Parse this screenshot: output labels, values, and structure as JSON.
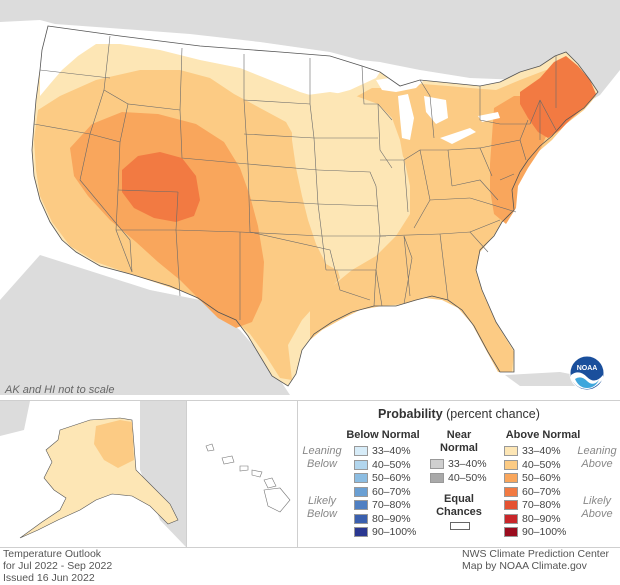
{
  "scale_note": "AK and HI not to scale",
  "footer_left": {
    "line1": "Temperature Outlook",
    "line2": "for Jul 2022 - Sep 2022",
    "line3": "Issued 16 Jun 2022"
  },
  "footer_right": {
    "line1": "NWS Climate Prediction Center",
    "line2": "Map by NOAA Climate.gov"
  },
  "logo": {
    "text": "NOAA"
  },
  "legend": {
    "title_bold": "Probability",
    "title_rest": "(percent chance)",
    "below_head": "Below Normal",
    "near_head_1": "Near",
    "near_head_2": "Normal",
    "above_head": "Above Normal",
    "equal_1": "Equal",
    "equal_2": "Chances",
    "leaning": "Leaning",
    "below_word": "Below",
    "above_word": "Above",
    "likely": "Likely",
    "below_items": [
      {
        "label": "33–40%",
        "color": "#d7ecf8"
      },
      {
        "label": "40–50%",
        "color": "#b2d6ee"
      },
      {
        "label": "50–60%",
        "color": "#8cbde2"
      },
      {
        "label": "60–70%",
        "color": "#6a9fd3"
      },
      {
        "label": "70–80%",
        "color": "#4f7fc2"
      },
      {
        "label": "80–90%",
        "color": "#3a5fae"
      },
      {
        "label": "90–100%",
        "color": "#2a3790"
      }
    ],
    "near_items": [
      {
        "label": "33–40%",
        "color": "#cfcfcf"
      },
      {
        "label": "40–50%",
        "color": "#a9a9a9"
      }
    ],
    "above_items": [
      {
        "label": "33–40%",
        "color": "#fde6b5"
      },
      {
        "label": "40–50%",
        "color": "#fccb84"
      },
      {
        "label": "50–60%",
        "color": "#f9a65c"
      },
      {
        "label": "60–70%",
        "color": "#f27a42"
      },
      {
        "label": "70–80%",
        "color": "#e45232"
      },
      {
        "label": "80–90%",
        "color": "#c8262a"
      },
      {
        "label": "90–100%",
        "color": "#9a0c1e"
      }
    ]
  },
  "colors": {
    "ocean": "#ffffff",
    "land_outside": "#dcdcdc",
    "equal_chances": "#ffffff",
    "state_border": "#5a5a5a"
  }
}
